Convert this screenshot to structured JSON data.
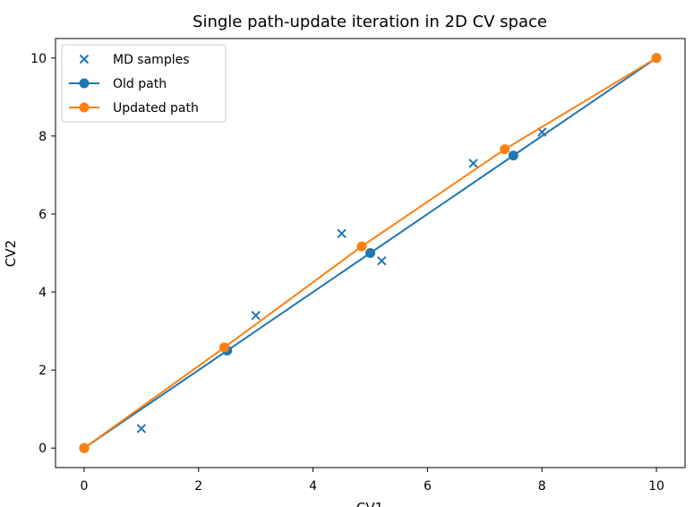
{
  "chart_data": {
    "type": "line",
    "title": "Single path-update iteration in 2D CV space",
    "xlabel": "CV1",
    "ylabel": "CV2",
    "xlim": [
      -0.5,
      10.5
    ],
    "ylim": [
      -0.5,
      10.5
    ],
    "x_ticks": [
      "0",
      "2",
      "4",
      "6",
      "8",
      "10"
    ],
    "y_ticks": [
      "0",
      "2",
      "4",
      "6",
      "8",
      "10"
    ],
    "grid": false,
    "legend_position": "upper-left",
    "series": [
      {
        "name": "MD samples",
        "kind": "scatter",
        "marker": "x",
        "color": "#1f77b4",
        "x": [
          1.0,
          3.0,
          4.5,
          5.2,
          6.8,
          8.0
        ],
        "y": [
          0.5,
          3.4,
          5.5,
          4.8,
          7.3,
          8.1
        ]
      },
      {
        "name": "Old path",
        "kind": "line",
        "marker": "circle",
        "color": "#1f77b4",
        "x": [
          0.0,
          2.5,
          5.0,
          7.5,
          10.0
        ],
        "y": [
          0.0,
          2.5,
          5.0,
          7.5,
          10.0
        ]
      },
      {
        "name": "Updated path",
        "kind": "line",
        "marker": "circle",
        "color": "#ff7f0e",
        "x": [
          0.0,
          2.45,
          4.85,
          7.35,
          10.0
        ],
        "y": [
          0.0,
          2.58,
          5.17,
          7.66,
          10.0
        ]
      }
    ]
  }
}
